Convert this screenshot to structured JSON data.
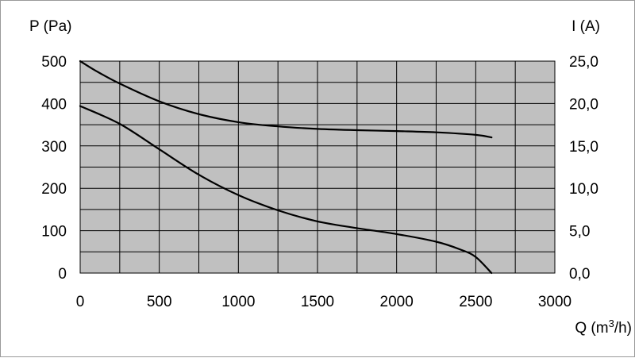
{
  "chart_data": {
    "type": "line",
    "xlabel_prefix": "Q (m",
    "xlabel_sup": "3",
    "xlabel_suffix": "/h)",
    "ylabel_left": "P (Pa)",
    "ylabel_right": "I (A)",
    "x_ticks": [
      "0",
      "500",
      "1000",
      "1500",
      "2000",
      "2500",
      "3000"
    ],
    "y_left_ticks": [
      "0",
      "100",
      "200",
      "300",
      "400",
      "500"
    ],
    "y_right_ticks": [
      "0,0",
      "5,0",
      "10,0",
      "15,0",
      "20,0",
      "25,0"
    ],
    "xlim": [
      0,
      3000
    ],
    "ylim_left": [
      0,
      500
    ],
    "ylim_right": [
      0,
      25
    ],
    "grid": true,
    "colors": {
      "plot_background": "#c0c0c0",
      "grid": "#000000",
      "line": "#000000"
    },
    "series": [
      {
        "axis": "left",
        "x": [
          0,
          100,
          250,
          500,
          750,
          1000,
          1250,
          1500,
          1750,
          2000,
          2250,
          2500,
          2600
        ],
        "y": [
          500,
          477,
          447,
          405,
          375,
          356,
          346,
          340,
          337,
          335,
          332,
          326,
          320
        ]
      },
      {
        "axis": "right",
        "x": [
          0,
          250,
          500,
          750,
          1000,
          1250,
          1500,
          1750,
          2000,
          2250,
          2400,
          2500,
          2600
        ],
        "y": [
          19.7,
          17.6,
          14.6,
          11.6,
          9.2,
          7.4,
          6.1,
          5.3,
          4.6,
          3.7,
          2.8,
          1.9,
          0.0
        ]
      }
    ]
  }
}
